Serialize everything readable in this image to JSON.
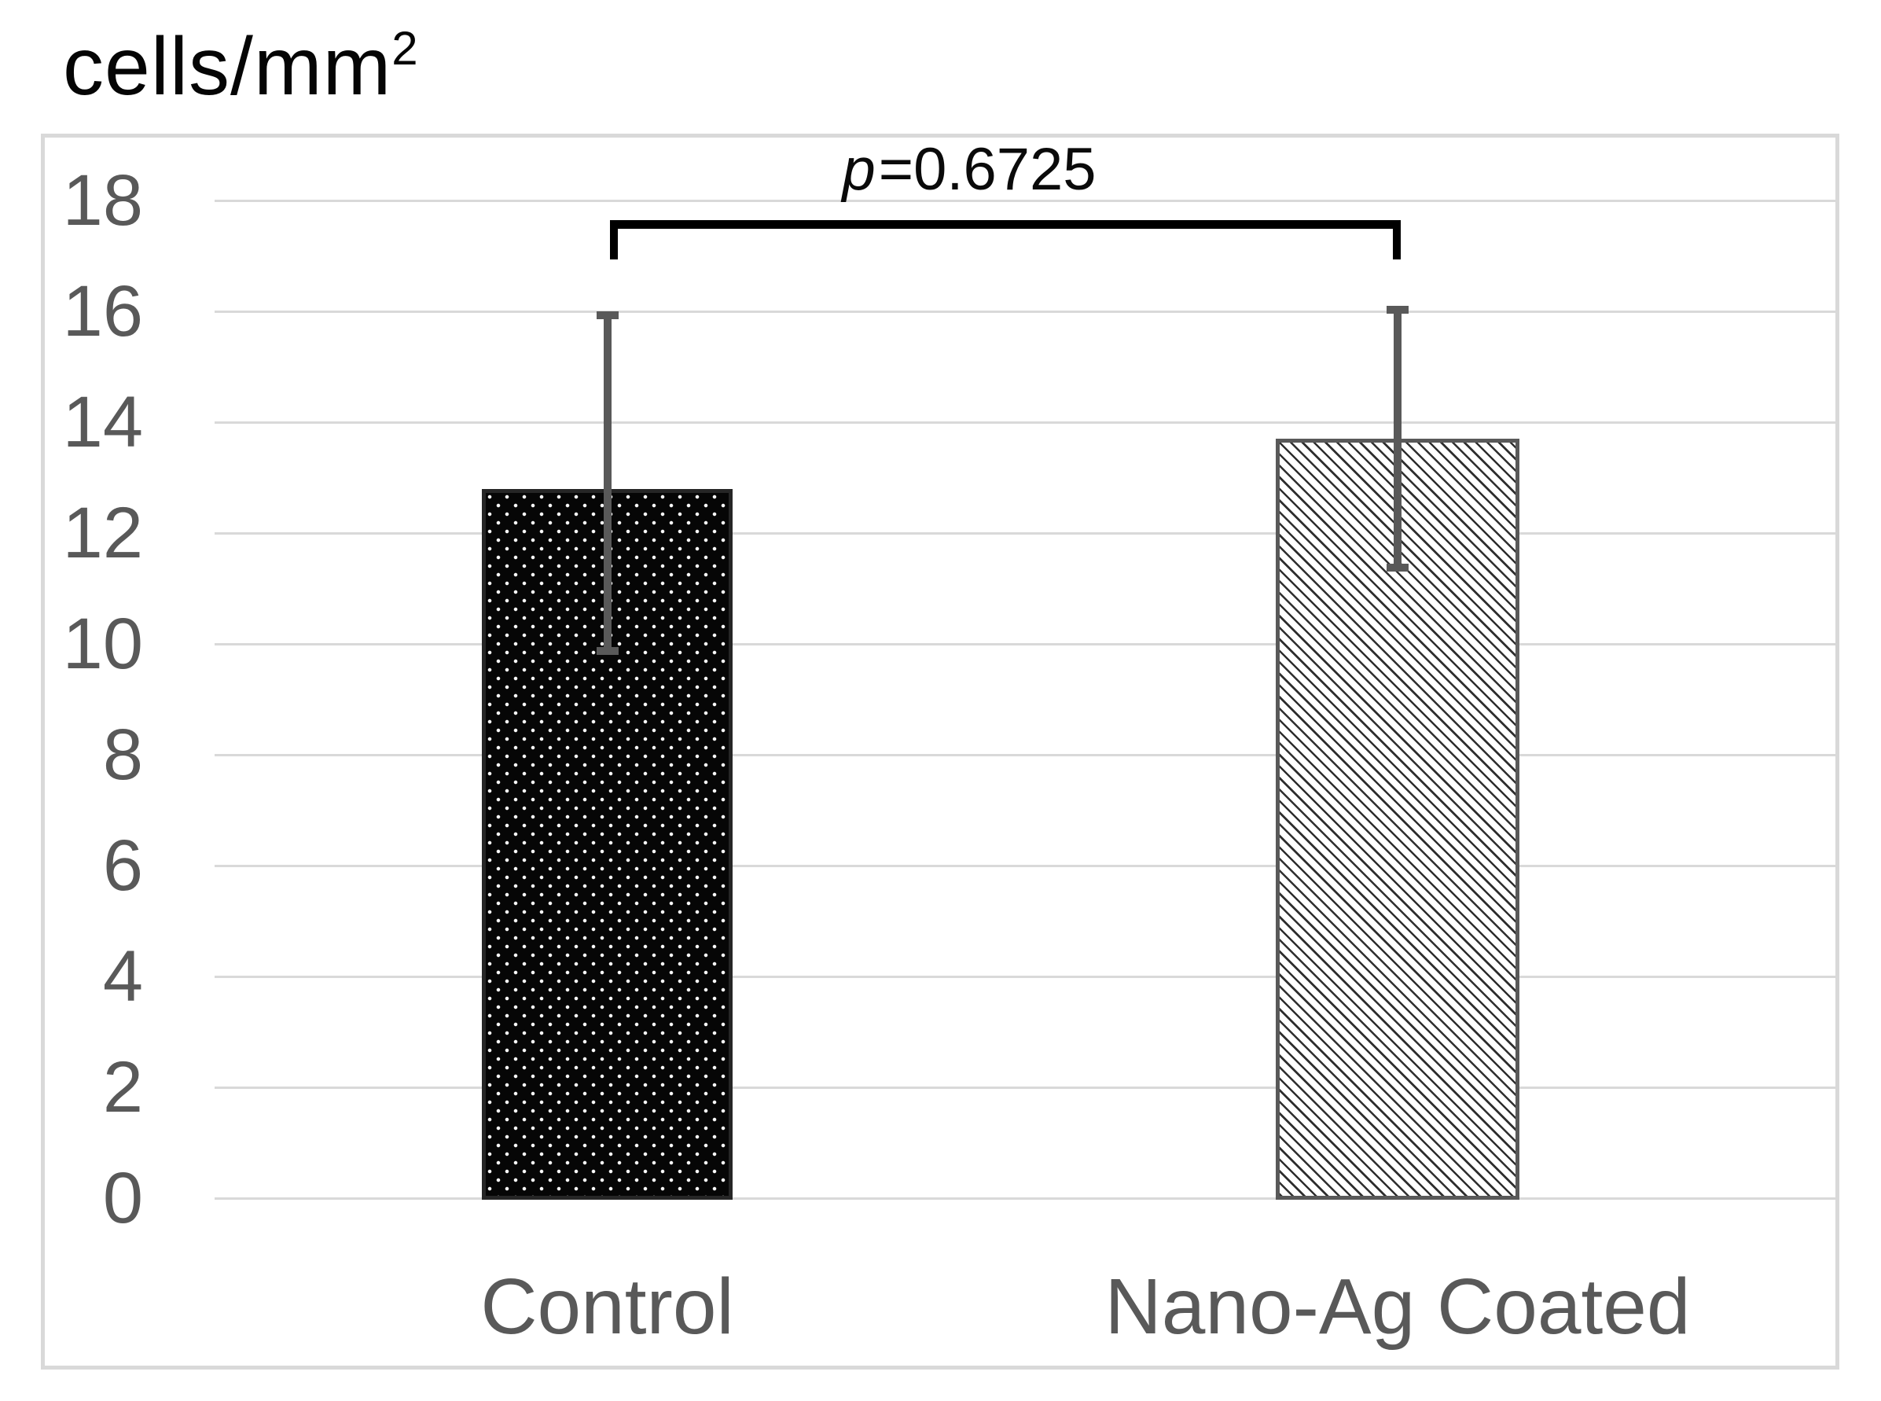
{
  "title": {
    "base": "cells/mm",
    "superscript": "2"
  },
  "chart_data": {
    "type": "bar",
    "categories": [
      "Control",
      "Nano-Ag Coated"
    ],
    "values": [
      12.8,
      13.7
    ],
    "error_bars": [
      {
        "low": 9.8,
        "high": 16.0
      },
      {
        "low": 11.3,
        "high": 16.1
      }
    ],
    "title": "cells/mm2",
    "xlabel": "",
    "ylabel": "cells/mm2",
    "ylim": [
      0,
      18
    ],
    "ytick_step": 2,
    "yticks": [
      18,
      16,
      14,
      12,
      10,
      8,
      6,
      4,
      2,
      0
    ],
    "grid": true,
    "legend": "none",
    "annotation": {
      "italic": "p",
      "rest": "=0.6725",
      "full": "p=0.6725"
    },
    "bar_styles": [
      {
        "name": "dotted-black",
        "fill": "#060606",
        "dot": "#ffffff",
        "border": "#262626"
      },
      {
        "name": "diagonal-hatch",
        "fill": "#ffffff",
        "line": "#2e2e2e",
        "border": "#595959"
      }
    ],
    "colors": {
      "gridline": "#d9d9d9",
      "plot_border": "#d9d9d9",
      "axis_text": "#595959",
      "error_bar": "#595959",
      "bracket": "#000000",
      "title_text": "#050505"
    }
  }
}
